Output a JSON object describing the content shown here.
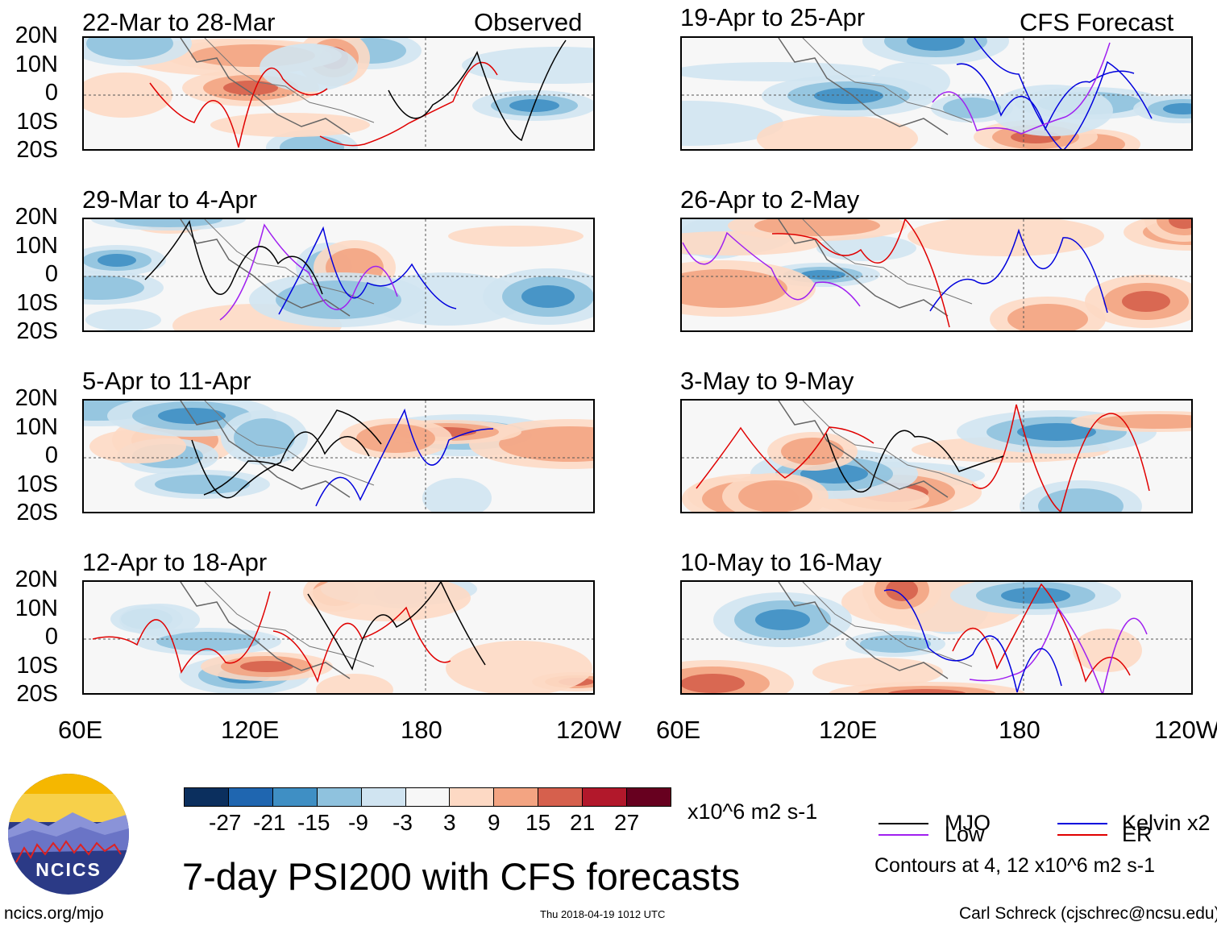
{
  "panels_left": [
    {
      "title": "22-Mar to 28-Mar",
      "tag": "Observed"
    },
    {
      "title": "29-Mar to 4-Apr",
      "tag": ""
    },
    {
      "title": "5-Apr to 11-Apr",
      "tag": ""
    },
    {
      "title": "12-Apr to 18-Apr",
      "tag": ""
    }
  ],
  "panels_right": [
    {
      "title": "19-Apr to 25-Apr",
      "tag": "CFS Forecast"
    },
    {
      "title": "26-Apr to 2-May",
      "tag": ""
    },
    {
      "title": "3-May to 9-May",
      "tag": ""
    },
    {
      "title": "10-May to 16-May",
      "tag": ""
    }
  ],
  "lat_labels": [
    "20N",
    "10N",
    "0",
    "10S",
    "20S"
  ],
  "lon_labels_left": [
    "60E",
    "120E",
    "180",
    "120W"
  ],
  "lon_labels_right": [
    "60E",
    "120E",
    "180",
    "120W"
  ],
  "colorbar": {
    "colors": [
      "#0b2f5e",
      "#1f66b0",
      "#3f8fc4",
      "#8fc2de",
      "#d0e4f1",
      "#f7f7f7",
      "#fdd9c4",
      "#f3a482",
      "#d6604d",
      "#b2182b",
      "#67001f"
    ],
    "ticks": [
      "-27",
      "-21",
      "-15",
      "-9",
      "-3",
      "3",
      "9",
      "15",
      "21",
      "27"
    ],
    "units": "x10^6 m2 s-1"
  },
  "legend": {
    "items": [
      {
        "label": "MJO",
        "color": "#000000"
      },
      {
        "label": "Kelvin x2",
        "color": "#0000dd"
      },
      {
        "label": "Low",
        "color": "#a020f0"
      },
      {
        "label": "ER",
        "color": "#e00000"
      }
    ],
    "note": "Contours at 4, 12 x10^6 m2 s-1"
  },
  "title": "7-day PSI200 with CFS forecasts",
  "logo_text": "NCICS",
  "footer": {
    "url": "ncics.org/mjo",
    "timestamp": "Thu 2018-04-19 1012 UTC",
    "credit": "Carl Schreck (cjschrec@ncsu.edu)"
  }
}
